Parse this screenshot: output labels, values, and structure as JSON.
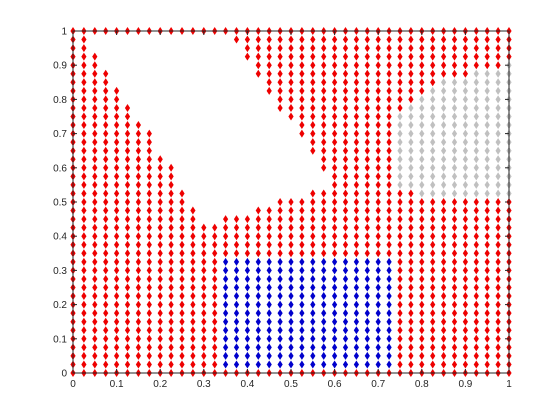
{
  "chart_data": {
    "type": "scatter",
    "title": "",
    "xlabel": "",
    "ylabel": "",
    "xlim": [
      0,
      1
    ],
    "ylim": [
      0,
      1
    ],
    "xticks": [
      "0",
      "0.1",
      "0.2",
      "0.3",
      "0.4",
      "0.5",
      "0.6",
      "0.7",
      "0.8",
      "0.9",
      "1"
    ],
    "yticks": [
      "0",
      "0.1",
      "0.2",
      "0.3",
      "0.4",
      "0.5",
      "0.6",
      "0.7",
      "0.8",
      "0.9",
      "1"
    ],
    "grid": false,
    "marker": "diamond",
    "grid_step": 0.025,
    "series": [
      {
        "color": "#ee0000",
        "description": "points on a 0.025 grid over [0,1]x[0,1] not belonging to the other groups, excluding the empty notch region",
        "region": "remainder",
        "points": []
      },
      {
        "color": "#0000cc",
        "region": "rectangle",
        "x_range": [
          0.35,
          0.725
        ],
        "y_range": [
          0.025,
          0.325
        ],
        "points": []
      },
      {
        "color": "#c0c0c0",
        "region": "polygon",
        "x_range": [
          0.75,
          1.0
        ],
        "y_range": [
          0.525,
          0.9
        ],
        "points": []
      }
    ],
    "empty_region_polygon": [
      [
        0.05,
        1.0
      ],
      [
        0.35,
        1.0
      ],
      [
        0.6,
        0.55
      ],
      [
        0.35,
        0.45
      ],
      [
        0.3,
        0.45
      ],
      [
        0.05,
        0.95
      ]
    ],
    "colors": {
      "red": "#ee0000",
      "blue": "#0000cc",
      "gray": "#c0c0c0",
      "axis": "#262626"
    }
  }
}
